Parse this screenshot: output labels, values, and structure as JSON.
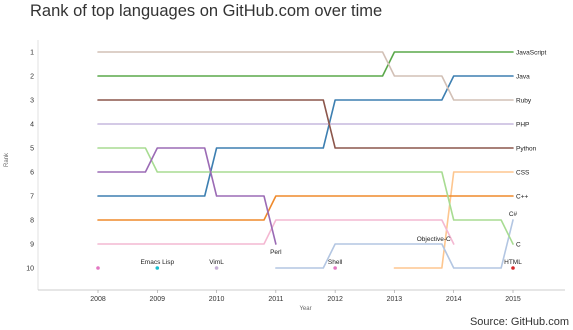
{
  "title": "Rank of top languages on GitHub.com over time",
  "source": "Source: GitHub.com",
  "chart_data": {
    "type": "line",
    "title": "Rank of top languages on GitHub.com over time",
    "xlabel": "Year",
    "ylabel": "Rank",
    "x": [
      2008,
      2009,
      2010,
      2011,
      2012,
      2013,
      2014,
      2015
    ],
    "ylim": [
      1,
      10
    ],
    "y_reversed": true,
    "grid": false,
    "series": [
      {
        "name": "JavaScript",
        "color": "#5aa84a",
        "values": [
          2,
          2,
          2,
          2,
          2,
          1,
          1,
          1
        ]
      },
      {
        "name": "Java",
        "color": "#3d7fb1",
        "values": [
          7,
          7,
          5,
          5,
          3,
          3,
          2,
          2
        ]
      },
      {
        "name": "Ruby",
        "color": "#d2c0b6",
        "values": [
          1,
          1,
          1,
          1,
          1,
          2,
          3,
          3
        ]
      },
      {
        "name": "PHP",
        "color": "#c6b8de",
        "values": [
          4,
          4,
          4,
          4,
          4,
          4,
          4,
          4
        ]
      },
      {
        "name": "Python",
        "color": "#8c564b",
        "values": [
          3,
          3,
          3,
          3,
          5,
          5,
          5,
          5
        ]
      },
      {
        "name": "CSS",
        "color": "#fdc68f",
        "values": [
          null,
          null,
          null,
          null,
          null,
          10,
          6,
          6
        ]
      },
      {
        "name": "C++",
        "color": "#ef8a2c",
        "values": [
          8,
          8,
          8,
          7,
          7,
          7,
          7,
          7
        ]
      },
      {
        "name": "C#",
        "color": "#b3c6e2",
        "values": [
          null,
          null,
          null,
          10,
          9,
          9,
          10,
          8
        ]
      },
      {
        "name": "C",
        "color": "#a8dc92",
        "values": [
          5,
          6,
          6,
          6,
          6,
          6,
          8,
          9
        ]
      },
      {
        "name": "Objective-C",
        "color": "#f4b8d2",
        "values": [
          9,
          9,
          9,
          8,
          8,
          8,
          9,
          null
        ]
      },
      {
        "name": "Perl",
        "color": "#9b6bb5",
        "values": [
          6,
          5,
          7,
          9,
          null,
          null,
          null,
          null
        ]
      },
      {
        "name": "Shell",
        "color": "#e377c2",
        "values": [
          null,
          null,
          null,
          null,
          10,
          null,
          null,
          null
        ]
      },
      {
        "name": "Emacs Lisp",
        "color": "#17becf",
        "values": [
          null,
          10,
          null,
          null,
          null,
          null,
          null,
          null
        ]
      },
      {
        "name": "VimL",
        "color": "#c5b0d5",
        "values": [
          null,
          null,
          10,
          null,
          null,
          null,
          null,
          null
        ]
      },
      {
        "name": "HTML",
        "color": "#d62728",
        "values": [
          null,
          null,
          null,
          null,
          null,
          null,
          null,
          10
        ]
      },
      {
        "name": "",
        "color": "#e377c2",
        "values": [
          10,
          null,
          null,
          null,
          null,
          null,
          null,
          null
        ]
      }
    ],
    "labels": [
      {
        "text": "JavaScript",
        "x": 2015,
        "y": 1,
        "side": "right"
      },
      {
        "text": "Java",
        "x": 2015,
        "y": 2,
        "side": "right"
      },
      {
        "text": "Ruby",
        "x": 2015,
        "y": 3,
        "side": "right"
      },
      {
        "text": "PHP",
        "x": 2015,
        "y": 4,
        "side": "right"
      },
      {
        "text": "Python",
        "x": 2015,
        "y": 5,
        "side": "right"
      },
      {
        "text": "CSS",
        "x": 2015,
        "y": 6,
        "side": "right"
      },
      {
        "text": "C++",
        "x": 2015,
        "y": 7,
        "side": "right"
      },
      {
        "text": "C#",
        "x": 2015,
        "y": 8,
        "side": "above"
      },
      {
        "text": "C",
        "x": 2015,
        "y": 9,
        "side": "right"
      },
      {
        "text": "Objective-C",
        "x": 2014,
        "y": 9,
        "side": "left"
      },
      {
        "text": "Perl",
        "x": 2011,
        "y": 9,
        "side": "below"
      },
      {
        "text": "Emacs Lisp",
        "x": 2009,
        "y": 10,
        "side": "above"
      },
      {
        "text": "VimL",
        "x": 2010,
        "y": 10,
        "side": "above"
      },
      {
        "text": "Shell",
        "x": 2012,
        "y": 10,
        "side": "above"
      },
      {
        "text": "HTML",
        "x": 2015,
        "y": 10,
        "side": "above"
      }
    ]
  }
}
